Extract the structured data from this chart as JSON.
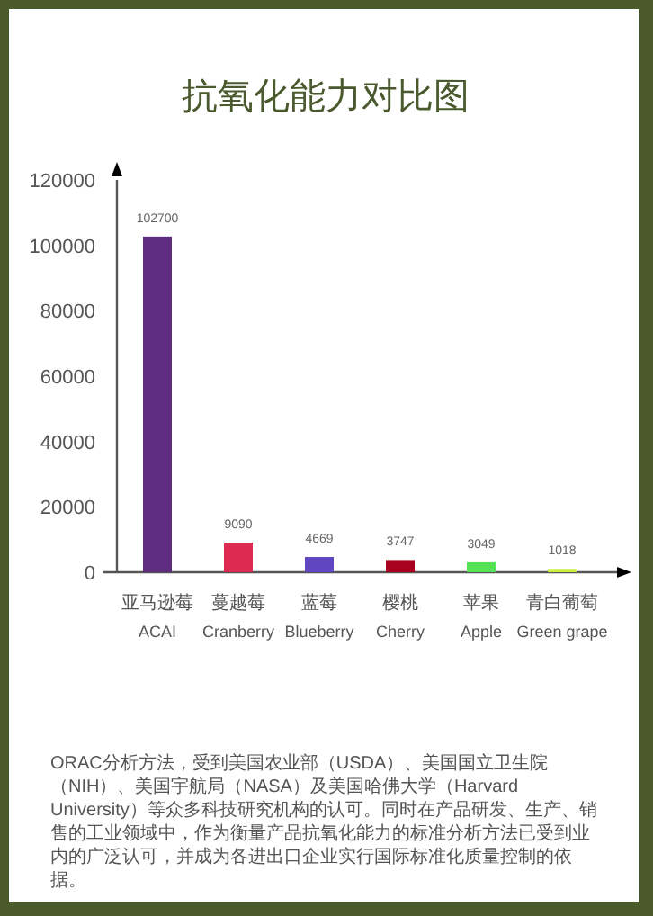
{
  "chart_data": {
    "type": "bar",
    "title": "抗氧化能力对比图",
    "categories": [
      "亚马逊莓\nACAI",
      "蔓越莓\nCranberry",
      "蓝莓\nBlueberry",
      "樱桃\nCherry",
      "苹果\nApple",
      "青白葡萄\nGreen grape"
    ],
    "values": [
      102700,
      9090,
      4669,
      3747,
      3049,
      1018
    ],
    "colors": [
      "#5e2d82",
      "#dc2a50",
      "#6046c0",
      "#a8001f",
      "#55e055",
      "#ccee44"
    ],
    "ylim": [
      0,
      120000
    ],
    "yticks": [
      0,
      20000,
      40000,
      60000,
      80000,
      100000,
      120000
    ],
    "grid": false,
    "data_labels": true,
    "annotations": [
      "ORAC分析方法，受到美国农业部（USDA）、美国国立卫生院（NIH）、美国宇航局（NASA）及美国哈佛大学（Harvard University）等众多科技研究机构的认可。同时在产品研发、生产、销售的工业领域中，作为衡量产品抗氧化能力的标准分析方法已受到业内的广泛认可，并成为各进出口企业实行国际标准化质量控制的依据。"
    ]
  }
}
